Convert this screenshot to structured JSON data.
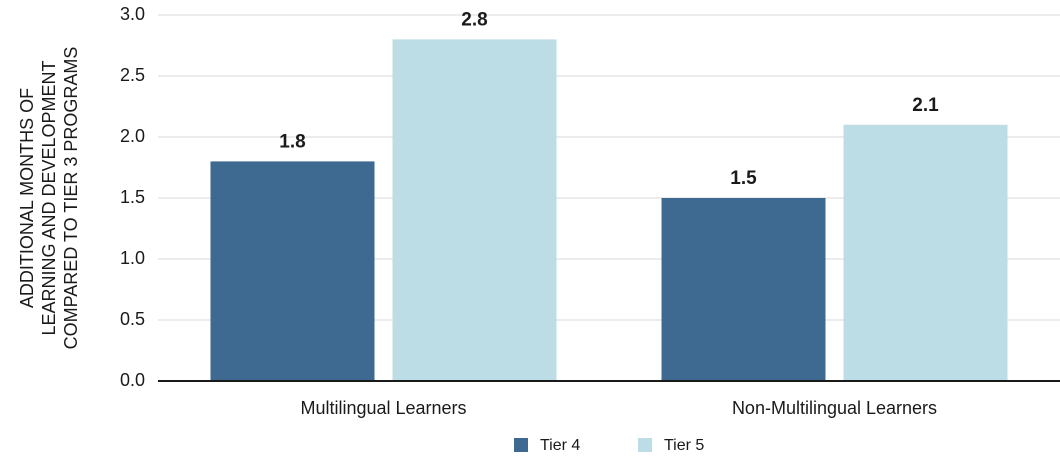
{
  "chart_data": {
    "type": "bar",
    "categories": [
      "Multilingual Learners",
      "Non-Multilingual Learners"
    ],
    "series": [
      {
        "name": "Tier 4",
        "values": [
          1.8,
          1.5
        ],
        "color": "#3e6990"
      },
      {
        "name": "Tier 5",
        "values": [
          2.8,
          2.1
        ],
        "color": "#bcdde5"
      }
    ],
    "data_labels": [
      [
        "1.8",
        "1.5"
      ],
      [
        "2.8",
        "2.1"
      ]
    ],
    "title": "",
    "xlabel": "",
    "ylabel_lines": [
      "ADDITIONAL MONTHS OF",
      "LEARNING AND DEVELOPMENT",
      "COMPARED TO TIER 3 PROGRAMS"
    ],
    "ylim": [
      0,
      3
    ],
    "yticks": [
      "0.0",
      "0.5",
      "1.0",
      "1.5",
      "2.0",
      "2.5",
      "3.0"
    ],
    "ytick_values": [
      0,
      0.5,
      1,
      1.5,
      2,
      2.5,
      3
    ],
    "grid": true,
    "legend_position": "bottom-center"
  }
}
